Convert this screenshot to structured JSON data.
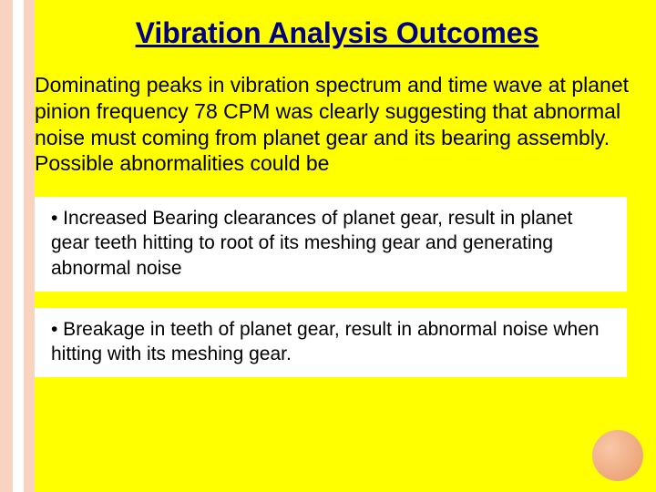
{
  "colors": {
    "background_yellow": "#ffff00",
    "stripe_peach": "#f7d3c0",
    "white": "#ffffff",
    "title_navy": "#000080",
    "text_black": "#000000",
    "circle_light": "#f9c7a8",
    "circle_dark": "#e89968"
  },
  "typography": {
    "title_fontsize": 32,
    "intro_fontsize": 23,
    "bullet_fontsize": 21,
    "font_family": "Arial"
  },
  "title": "Vibration Analysis Outcomes",
  "intro": "Dominating peaks in vibration spectrum and time wave at planet pinion frequency 78 CPM was clearly suggesting that abnormal noise must coming from planet gear and its bearing assembly. Possible abnormalities could be",
  "bullets": [
    "•  Increased Bearing clearances of planet gear, result in planet gear teeth hitting to root of its meshing gear and generating abnormal noise",
    "•  Breakage in teeth of planet gear,  result in abnormal noise when hitting with its meshing gear."
  ]
}
